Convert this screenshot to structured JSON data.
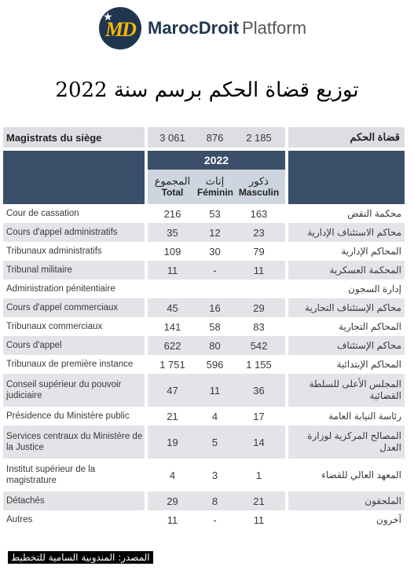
{
  "header": {
    "brand_bold": "MarocDroit",
    "brand_light": "Platform",
    "logo_letters": "MD"
  },
  "title": "توزيع قضاة الحكم برسم سنة 2022",
  "table": {
    "summary": {
      "label_fr": "Magistrats du siège",
      "total": "3 061",
      "feminin": "876",
      "masculin": "2 185",
      "label_ar": "قضاة الحكم"
    },
    "year": "2022",
    "columns": [
      {
        "ar": "المجموع",
        "fr": "Total"
      },
      {
        "ar": "إناث",
        "fr": "Féminin"
      },
      {
        "ar": "ذكور",
        "fr": "Masculin"
      }
    ],
    "rows": [
      {
        "fr": "Cour de cassation",
        "total": "216",
        "feminin": "53",
        "masculin": "163",
        "ar": "محكمة النقض"
      },
      {
        "fr": "Cours d'appel administratifs",
        "total": "35",
        "feminin": "12",
        "masculin": "23",
        "ar": "محاكم الاستئناف الإدارية"
      },
      {
        "fr": "Tribunaux administratifs",
        "total": "109",
        "feminin": "30",
        "masculin": "79",
        "ar": "المحاكم الإدارية"
      },
      {
        "fr": "Tribunal militaire",
        "total": "11",
        "feminin": "-",
        "masculin": "11",
        "ar": "المحكمة العسكرية"
      },
      {
        "fr": "Administration pénitentiaire",
        "total": "",
        "feminin": "",
        "masculin": "",
        "ar": "إدارة السجون"
      },
      {
        "fr": "Cours d'appel commerciaux",
        "total": "45",
        "feminin": "16",
        "masculin": "29",
        "ar": "محاكم الإستئناف التجارية"
      },
      {
        "fr": "Tribunaux commerciaux",
        "total": "141",
        "feminin": "58",
        "masculin": "83",
        "ar": "المحاكم التجارية"
      },
      {
        "fr": "Cours d'appel",
        "total": "622",
        "feminin": "80",
        "masculin": "542",
        "ar": "محاكم الإستئناف"
      },
      {
        "fr": "Tribunaux de première instance",
        "total": "1 751",
        "feminin": "596",
        "masculin": "1 155",
        "ar": "المحاكم الإبتدائية"
      },
      {
        "fr": "Conseil supérieur du pouvoir judiciaire",
        "total": "47",
        "feminin": "11",
        "masculin": "36",
        "ar": "المجلس الأعلى للسلطة القضائية"
      },
      {
        "fr": "Présidence du Ministère public",
        "total": "21",
        "feminin": "4",
        "masculin": "17",
        "ar": "رئاسة النيابة العامة"
      },
      {
        "fr": "Services centraux du Ministère de la Justice",
        "total": "19",
        "feminin": "5",
        "masculin": "14",
        "ar": "المصالح المركزية لوزارة العدل"
      },
      {
        "fr": "Institut supérieur de la magistrature",
        "total": "4",
        "feminin": "3",
        "masculin": "1",
        "ar": "المعهد العالي للقضاء"
      },
      {
        "fr": "Détachés",
        "total": "29",
        "feminin": "8",
        "masculin": "21",
        "ar": "الملحقون"
      },
      {
        "fr": "Autres",
        "total": "11",
        "feminin": "-",
        "masculin": "11",
        "ar": "آخرون"
      }
    ]
  },
  "source": "المصدر: المندوبية السامية للتخطيط"
}
